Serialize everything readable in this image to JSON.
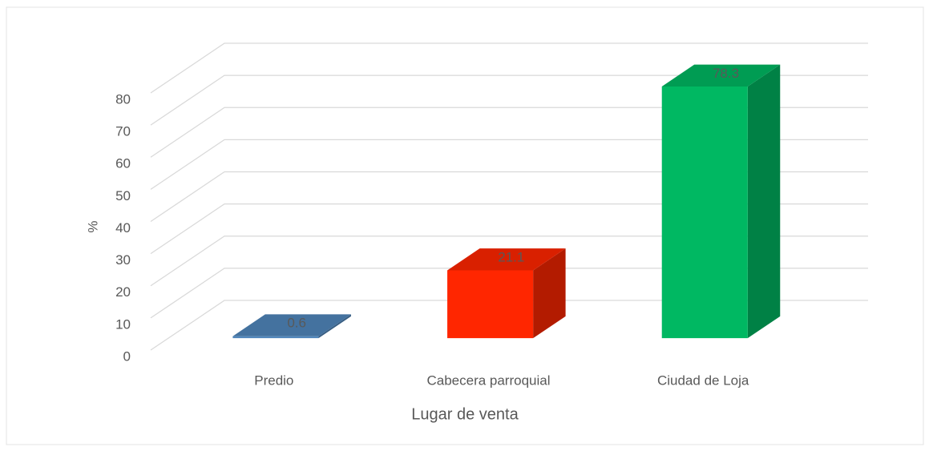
{
  "chart_data": {
    "type": "bar3d",
    "y_label": "%",
    "x_label": "Lugar de venta",
    "categories": [
      "Predio",
      "Cabecera parroquial",
      "Ciudad de Loja"
    ],
    "values": [
      0.6,
      21.1,
      78.3
    ],
    "colors": [
      "#5086bb",
      "#ff2600",
      "#00b862"
    ],
    "ylim": [
      0,
      80
    ],
    "yticks": [
      0,
      10,
      20,
      30,
      40,
      50,
      60,
      70,
      80
    ],
    "grid": true
  }
}
